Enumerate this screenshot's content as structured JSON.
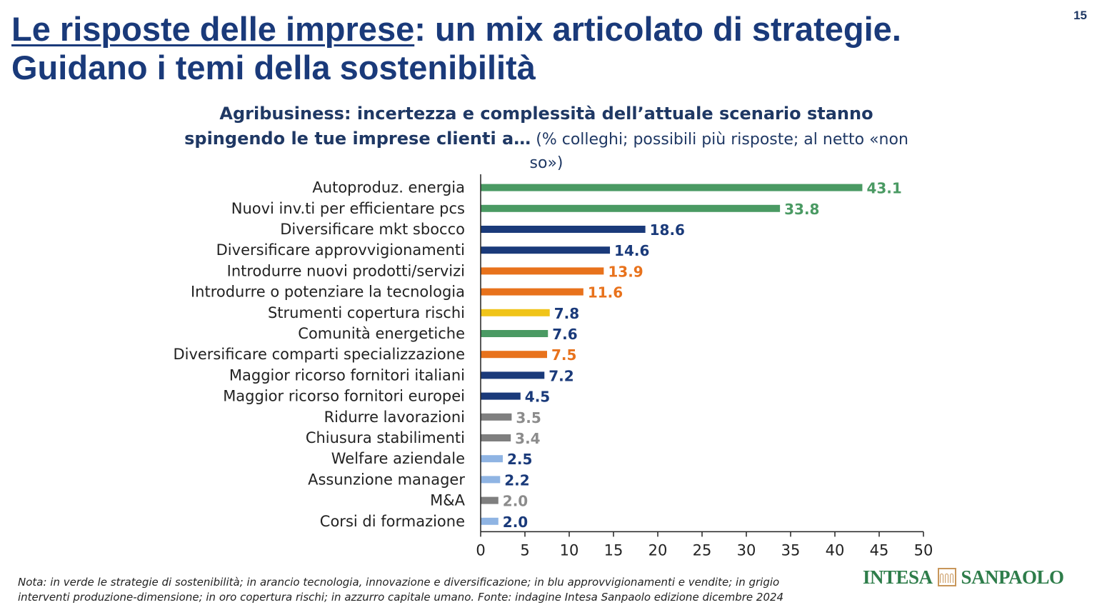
{
  "page": {
    "number": "15"
  },
  "title": {
    "underlined": "Le risposte delle imprese",
    "rest_line1": ": un mix articolato di strategie.",
    "line2": "Guidano i temi della sostenibilità"
  },
  "chart_heading": {
    "bold_line1": "Agribusiness: incertezza e complessità dell’attuale scenario stanno",
    "bold_line2": "spingendo le tue imprese clienti a…",
    "note_line1": " (% colleghi; possibili più risposte; al netto «non",
    "note_line2": "so»)"
  },
  "colors": {
    "green": "#4a9a63",
    "blue": "#1a3a7a",
    "orange": "#e8721c",
    "gold": "#f0c419",
    "grey": "#7f7f7f",
    "lightblue": "#8fb4e3",
    "label_blue": "#1a3a7a",
    "label_grey": "#8c8c8c"
  },
  "chart_data": {
    "type": "bar",
    "orientation": "horizontal",
    "categories": [
      "Autoproduz. energia",
      "Nuovi inv.ti per efficientare pcs",
      "Diversificare mkt sbocco",
      "Diversificare approvvigionamenti",
      "Introdurre nuovi prodotti/servizi",
      "Introdurre o potenziare la tecnologia",
      "Strumenti copertura rischi",
      "Comunità energetiche",
      "Diversificare comparti specializzazione",
      "Maggior ricorso fornitori italiani",
      "Maggior ricorso fornitori europei",
      "Ridurre lavorazioni",
      "Chiusura stabilimenti",
      "Welfare aziendale",
      "Assunzione manager",
      "M&A",
      "Corsi di formazione"
    ],
    "values": [
      43.1,
      33.8,
      18.6,
      14.6,
      13.9,
      11.6,
      7.8,
      7.6,
      7.5,
      7.2,
      4.5,
      3.5,
      3.4,
      2.5,
      2.2,
      2.0,
      2.0
    ],
    "value_labels": [
      "43.1",
      "33.8",
      "18.6",
      "14.6",
      "13.9",
      "11.6",
      "7.8",
      "7.6",
      "7.5",
      "7.2",
      "4.5",
      "3.5",
      "3.4",
      "2.5",
      "2.2",
      "2.0",
      "2.0"
    ],
    "bar_colors": [
      "green",
      "green",
      "blue",
      "blue",
      "orange",
      "orange",
      "gold",
      "green",
      "orange",
      "blue",
      "blue",
      "grey",
      "grey",
      "lightblue",
      "lightblue",
      "grey",
      "lightblue"
    ],
    "label_colors": [
      "green",
      "green",
      "label_blue",
      "label_blue",
      "orange",
      "orange",
      "label_blue",
      "label_blue",
      "orange",
      "label_blue",
      "label_blue",
      "label_grey",
      "label_grey",
      "label_blue",
      "label_blue",
      "label_grey",
      "label_blue"
    ],
    "xlim": [
      0,
      50
    ],
    "xticks": [
      "0",
      "5",
      "10",
      "15",
      "20",
      "25",
      "30",
      "35",
      "40",
      "45",
      "50"
    ],
    "grid": false,
    "legend": "none"
  },
  "footnote": {
    "line1": "Nota: in verde le strategie di sostenibilità; in arancio tecnologia, innovazione e diversificazione; in blu approvvigionamenti e vendite; in grigio",
    "line2": "interventi produzione-dimensione; in oro copertura rischi; in azzurro capitale umano. Fonte: indagine Intesa Sanpaolo edizione dicembre 2024"
  },
  "logo": {
    "left": "INTESA",
    "right": "SANPAOLO"
  }
}
